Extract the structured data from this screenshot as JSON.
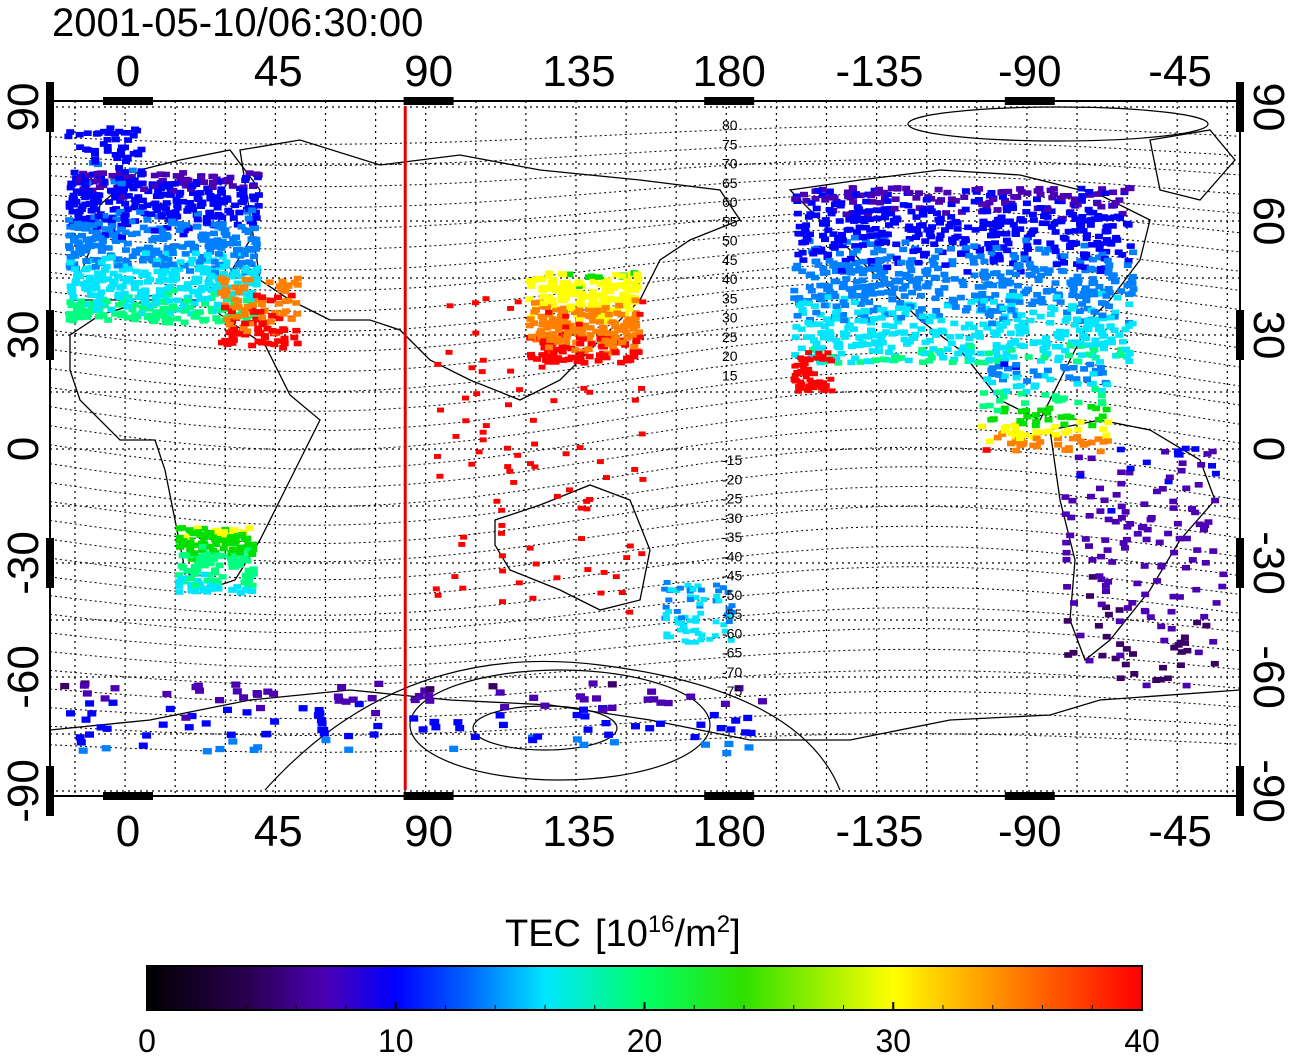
{
  "timestamp": "2001-05-10/06:30:00",
  "top_lon_labels": [
    "0",
    "45",
    "90",
    "135",
    "180",
    "-135",
    "-90",
    "-45"
  ],
  "bottom_lon_labels": [
    "0",
    "45",
    "90",
    "135",
    "180",
    "-135",
    "-90",
    "-45"
  ],
  "lat_labels": [
    "90",
    "60",
    "30",
    "0",
    "-30",
    "-60",
    "-90"
  ],
  "contour_labels": [
    "80",
    "75",
    "70",
    "65",
    "60",
    "55",
    "50",
    "45",
    "40",
    "35",
    "30",
    "25",
    "20",
    "15",
    "-15",
    "-20",
    "-25",
    "-30",
    "-35",
    "-40",
    "-45",
    "-50",
    "-55",
    "-60",
    "-65",
    "-70",
    "-75"
  ],
  "colorbar": {
    "title": "TEC",
    "unit_prefix": "[10",
    "unit_exp": "16",
    "unit_mid": "/m",
    "unit_exp2": "2",
    "unit_suffix": "]",
    "ticks": [
      "0",
      "10",
      "20",
      "30",
      "40"
    ],
    "colors": [
      "#000000",
      "#3a0066",
      "#4b00b4",
      "#0000ff",
      "#0080ff",
      "#00e6ff",
      "#00ff80",
      "#00e000",
      "#ffff00",
      "#ff8000",
      "#ff0000"
    ]
  },
  "terminator_longitude": 83
}
